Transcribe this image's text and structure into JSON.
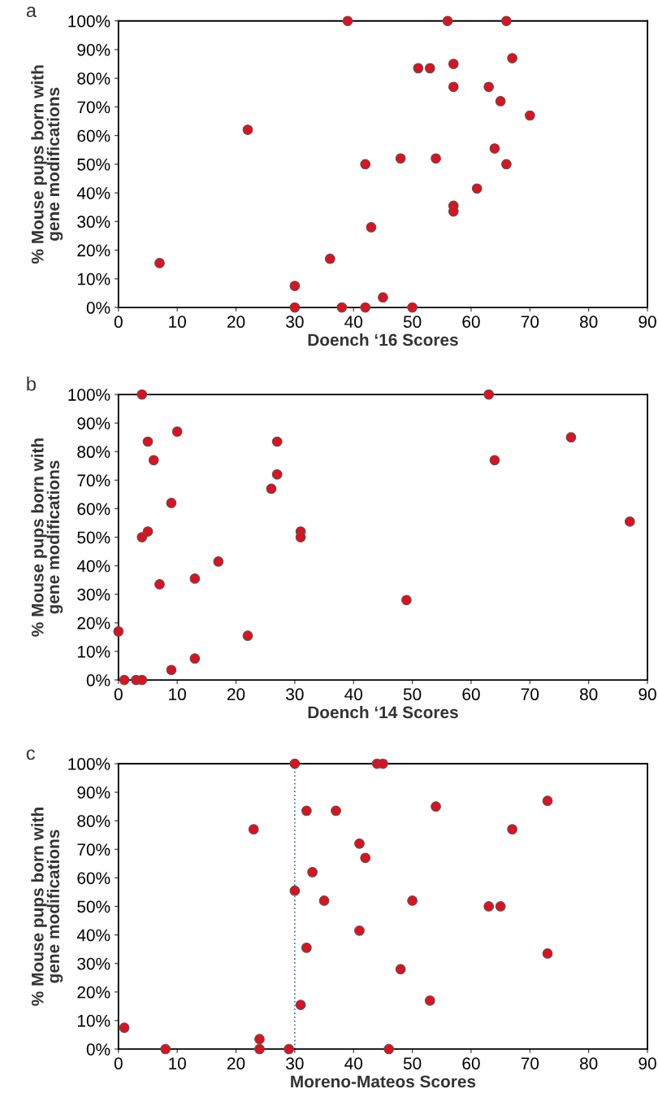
{
  "chart_data": [
    {
      "type": "scatter",
      "title": "a",
      "xlabel": "Doench ‘16 Scores",
      "ylabel": "% Mouse pups born with\ngene modifications",
      "series": [
        {
          "color": "#e0101e",
          "x": [
            7,
            22,
            39,
            56,
            66,
            51,
            53,
            57,
            57,
            67,
            63,
            65,
            70,
            64,
            66,
            42,
            48,
            54,
            61,
            57,
            57,
            43,
            36,
            30,
            30,
            38,
            42,
            45,
            50
          ],
          "values": [
            15.5,
            62,
            100,
            100,
            100,
            83.5,
            83.5,
            85,
            77,
            87,
            77,
            72,
            67,
            55.5,
            50,
            50,
            52,
            52,
            41.5,
            35.5,
            33.5,
            28,
            17,
            7.5,
            0,
            0,
            0,
            3.5,
            0
          ]
        }
      ],
      "xlim": [
        0,
        90
      ],
      "xticks": [
        0,
        10,
        20,
        30,
        40,
        50,
        60,
        70,
        80,
        90
      ],
      "ylim": [
        0,
        100
      ],
      "yticks": [
        {
          "value": 0,
          "label": "0%"
        },
        {
          "value": 10,
          "label": "10%"
        },
        {
          "value": 20,
          "label": "20%"
        },
        {
          "value": 30,
          "label": "30%"
        },
        {
          "value": 40,
          "label": "40%"
        },
        {
          "value": 50,
          "label": "50%"
        },
        {
          "value": 60,
          "label": "60%"
        },
        {
          "value": 70,
          "label": "70%"
        },
        {
          "value": 80,
          "label": "80%"
        },
        {
          "value": 90,
          "label": "90%"
        },
        {
          "value": 100,
          "label": "100%"
        }
      ],
      "marker": "circle",
      "grid": false,
      "legend": false
    },
    {
      "type": "scatter",
      "title": "b",
      "xlabel": "Doench ‘14 Scores",
      "ylabel": "% Mouse pups born with\ngene modifications",
      "series": [
        {
          "color": "#e0101e",
          "x": [
            0,
            1,
            3,
            4,
            4,
            5,
            6,
            10,
            4,
            5,
            9,
            7,
            13,
            17,
            9,
            13,
            22,
            26,
            27,
            27,
            31,
            31,
            49,
            63,
            64,
            77,
            87
          ],
          "values": [
            17,
            0,
            0,
            0,
            100,
            83.5,
            77,
            87,
            50,
            52,
            62,
            33.5,
            35.5,
            41.5,
            3.5,
            7.5,
            15.5,
            67,
            83.5,
            72,
            52,
            50,
            28,
            100,
            77,
            85,
            55.5
          ]
        }
      ],
      "xlim": [
        0,
        90
      ],
      "xticks": [
        0,
        10,
        20,
        30,
        40,
        50,
        60,
        70,
        80,
        90
      ],
      "ylim": [
        0,
        100
      ],
      "yticks": [
        {
          "value": 0,
          "label": "0%"
        },
        {
          "value": 10,
          "label": "10%"
        },
        {
          "value": 20,
          "label": "20%"
        },
        {
          "value": 30,
          "label": "30%"
        },
        {
          "value": 40,
          "label": "40%"
        },
        {
          "value": 50,
          "label": "50%"
        },
        {
          "value": 60,
          "label": "60%"
        },
        {
          "value": 70,
          "label": "70%"
        },
        {
          "value": 80,
          "label": "80%"
        },
        {
          "value": 90,
          "label": "90%"
        },
        {
          "value": 100,
          "label": "100%"
        }
      ],
      "marker": "circle",
      "grid": false,
      "legend": false
    },
    {
      "type": "scatter",
      "title": "c",
      "xlabel": "Moreno-Mateos Scores",
      "ylabel": "% Mouse pups born with\ngene modifications",
      "series": [
        {
          "color": "#e0101e",
          "x": [
            1,
            8,
            23,
            24,
            24,
            29,
            30,
            30,
            31,
            32,
            32,
            33,
            35,
            37,
            41,
            42,
            41,
            44,
            45,
            46,
            48,
            50,
            53,
            54,
            63,
            65,
            67,
            73,
            73
          ],
          "values": [
            7.5,
            0,
            77,
            3.5,
            0,
            0,
            100,
            55.5,
            15.5,
            83.5,
            35.5,
            62,
            52,
            83.5,
            72,
            67,
            41.5,
            100,
            100,
            0,
            28,
            52,
            17,
            85,
            50,
            50,
            77,
            87,
            33.5
          ]
        }
      ],
      "xlim": [
        0,
        90
      ],
      "xticks": [
        0,
        10,
        20,
        30,
        40,
        50,
        60,
        70,
        80,
        90
      ],
      "ylim": [
        0,
        100
      ],
      "yticks": [
        {
          "value": 0,
          "label": "0%"
        },
        {
          "value": 10,
          "label": "10%"
        },
        {
          "value": 20,
          "label": "20%"
        },
        {
          "value": 30,
          "label": "30%"
        },
        {
          "value": 40,
          "label": "40%"
        },
        {
          "value": 50,
          "label": "50%"
        },
        {
          "value": 60,
          "label": "60%"
        },
        {
          "value": 70,
          "label": "70%"
        },
        {
          "value": 80,
          "label": "80%"
        },
        {
          "value": 90,
          "label": "90%"
        },
        {
          "value": 100,
          "label": "100%"
        }
      ],
      "ref_lines": [
        {
          "axis": "x",
          "value": 30,
          "color": "#4a7fc8",
          "line_style": "dotted"
        }
      ],
      "marker": "circle",
      "grid": false,
      "legend": false
    }
  ]
}
